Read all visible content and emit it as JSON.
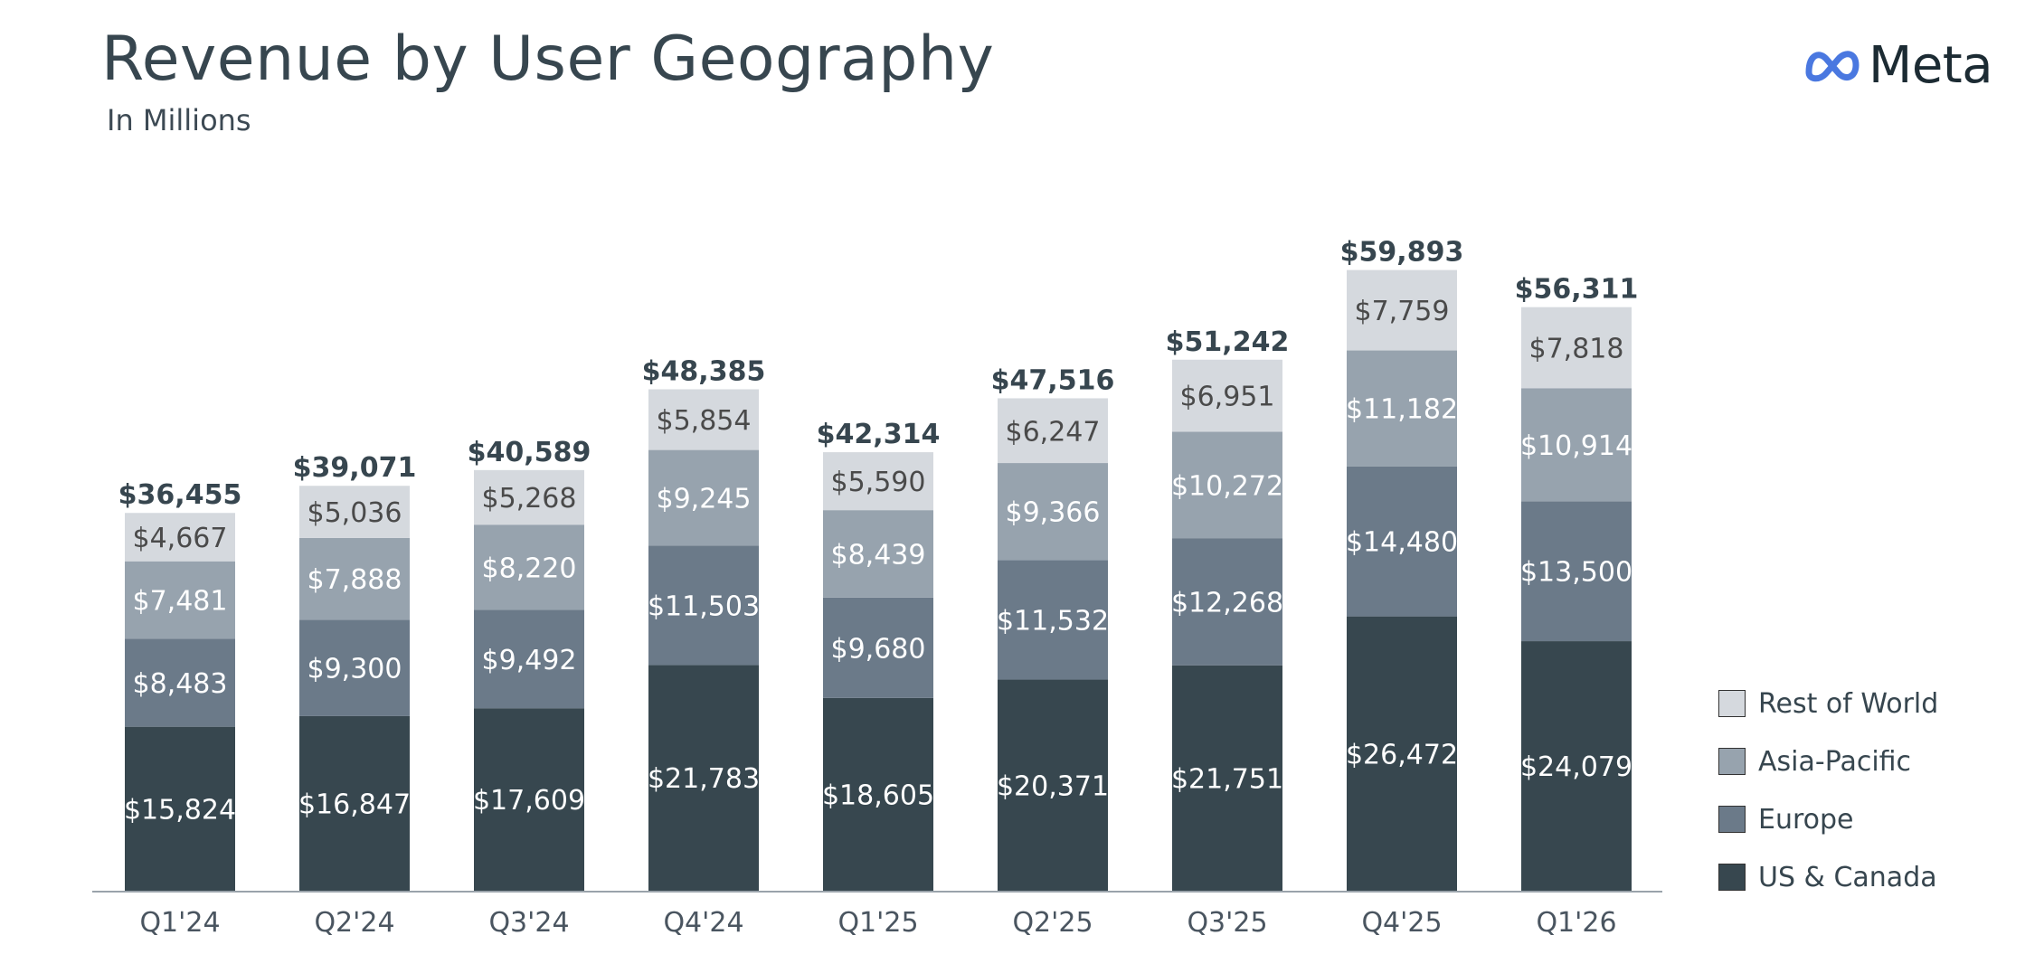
{
  "title": "Revenue by User Geography",
  "subtitle": "In Millions",
  "logo": {
    "text": "Meta",
    "icon": "meta-infinity-icon",
    "icon_color": "#4a78e0"
  },
  "chart_data": {
    "type": "bar",
    "stacked": true,
    "categories": [
      "Q1'24",
      "Q2'24",
      "Q3'24",
      "Q4'24",
      "Q1'25",
      "Q2'25",
      "Q3'25",
      "Q4'25",
      "Q1'26"
    ],
    "totals": [
      "$36,455",
      "$39,071",
      "$40,589",
      "$48,385",
      "$42,314",
      "$47,516",
      "$51,242",
      "$59,893",
      "$56,311"
    ],
    "series": [
      {
        "name": "US & Canada",
        "color": "#37474f",
        "label_color": "#ffffff",
        "values": [
          15824,
          16847,
          17609,
          21783,
          18605,
          20371,
          21751,
          26472,
          24079
        ],
        "labels": [
          "$15,824",
          "$16,847",
          "$17,609",
          "$21,783",
          "$18,605",
          "$20,371",
          "$21,751",
          "$26,472",
          "$24,079"
        ]
      },
      {
        "name": "Europe",
        "color": "#6b7a89",
        "label_color": "#ffffff",
        "values": [
          8483,
          9300,
          9492,
          11503,
          9680,
          11532,
          12268,
          14480,
          13500
        ],
        "labels": [
          "$8,483",
          "$9,300",
          "$9,492",
          "$11,503",
          "$9,680",
          "$11,532",
          "$12,268",
          "$14,480",
          "$13,500"
        ]
      },
      {
        "name": "Asia-Pacific",
        "color": "#97a3ae",
        "label_color": "#ffffff",
        "values": [
          7481,
          7888,
          8220,
          9245,
          8439,
          9366,
          10272,
          11182,
          10914
        ],
        "labels": [
          "$7,481",
          "$7,888",
          "$8,220",
          "$9,245",
          "$8,439",
          "$9,366",
          "$10,272",
          "$11,182",
          "$10,914"
        ]
      },
      {
        "name": "Rest of World",
        "color": "#d5d9de",
        "label_color": "#4a4a4a",
        "values": [
          4667,
          5036,
          5268,
          5854,
          5590,
          6247,
          6951,
          7759,
          7818
        ],
        "labels": [
          "$4,667",
          "$5,036",
          "$5,268",
          "$5,854",
          "$5,590",
          "$6,247",
          "$6,951",
          "$7,759",
          "$7,818"
        ]
      }
    ],
    "legend_position": "right-bottom",
    "legend_order": [
      "Rest of World",
      "Asia-Pacific",
      "Europe",
      "US & Canada"
    ],
    "grid": false
  }
}
